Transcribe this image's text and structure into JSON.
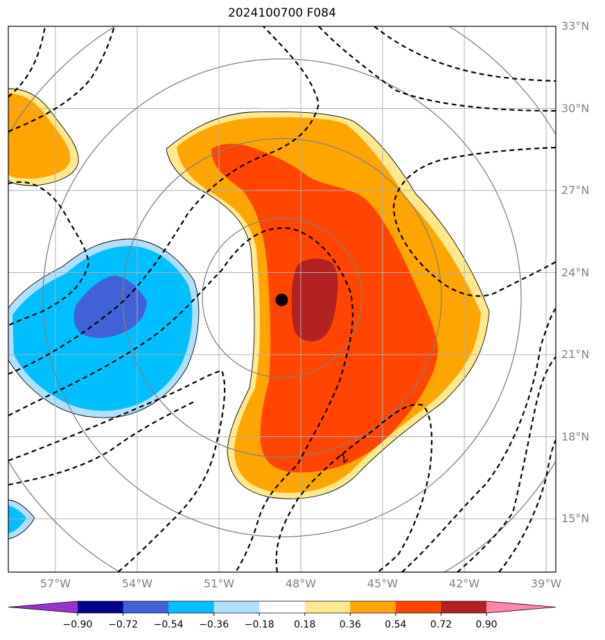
{
  "title": "2024100700 F084",
  "lat_labels": [
    {
      "text": "33°N",
      "lat": 33
    },
    {
      "text": "30°N",
      "lat": 30
    },
    {
      "text": "27°N",
      "lat": 27
    },
    {
      "text": "24°N",
      "lat": 24
    },
    {
      "text": "21°N",
      "lat": 21
    },
    {
      "text": "18°N",
      "lat": 18
    },
    {
      "text": "15°N",
      "lat": 15
    }
  ],
  "lon_labels": [
    {
      "text": "57°W",
      "lon": -57
    },
    {
      "text": "54°W",
      "lon": -54
    },
    {
      "text": "51°W",
      "lon": -51
    },
    {
      "text": "48°W",
      "lon": -48
    },
    {
      "text": "45°W",
      "lon": -45
    },
    {
      "text": "42°W",
      "lon": -42
    },
    {
      "text": "39°W",
      "lon": -39
    }
  ],
  "contour_label": "2",
  "colorbar": {
    "ticks": [
      "−0.90",
      "−0.72",
      "−0.54",
      "−0.36",
      "−0.18",
      "0.18",
      "0.36",
      "0.54",
      "0.72",
      "0.90"
    ],
    "colors": [
      "#9932cc",
      "#00008b",
      "#4161d6",
      "#00bfff",
      "#b0e0fe",
      "#ffffff",
      "#fee98f",
      "#ffa500",
      "#ff4500",
      "#b22222",
      "#ff88aa"
    ]
  },
  "storm_center": {
    "lat": 23.0,
    "lon": -48.7
  },
  "colors": {
    "grid": "#b0b0b0",
    "range_rings": "#808080",
    "dashed_contours": "#000000"
  }
}
